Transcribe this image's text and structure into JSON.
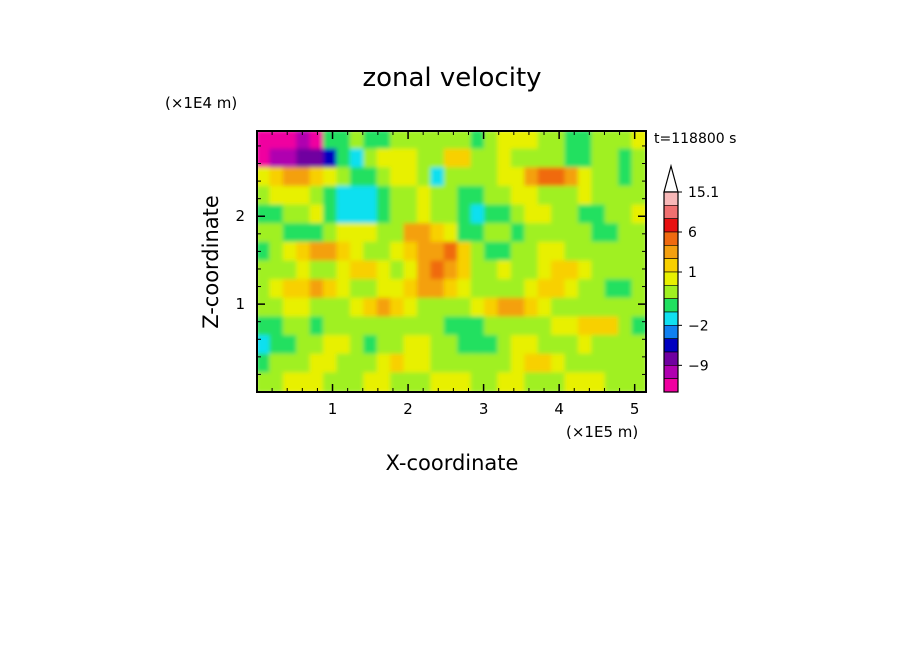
{
  "chart_data": {
    "type": "heatmap",
    "title": "zonal velocity",
    "xlabel": "X-coordinate",
    "ylabel": "Z-coordinate",
    "x_scale_label": "(×1E5 m)",
    "y_scale_label": "(×1E4 m)",
    "time_label": "t=118800 s",
    "xlim": [
      0,
      5.15
    ],
    "ylim": [
      0,
      2.97
    ],
    "x_ticks": [
      "1",
      "2",
      "3",
      "4",
      "5"
    ],
    "y_ticks": [
      "1",
      "2"
    ],
    "colorbar": {
      "labels": [
        "15.1",
        "6",
        "1",
        "−2",
        "−9"
      ],
      "levels_top_to_bottom": [
        "15.1",
        "",
        "",
        "6",
        "",
        "",
        "1",
        "",
        "",
        "",
        "−2",
        "",
        "",
        "−9",
        ""
      ],
      "colors_top_to_bottom": [
        "#f8b8b8",
        "#f07070",
        "#e81010",
        "#f06a10",
        "#f4a010",
        "#f8d000",
        "#e8f000",
        "#a0f020",
        "#20e060",
        "#10e0f0",
        "#1080f0",
        "#0000c0",
        "#7000a0",
        "#b000b0",
        "#f000a0"
      ],
      "extend_top": true
    },
    "field_sample_grid_note": "",
    "field_rows": [
      "AAABAGGHGGHHHHHHGHIIIHHGGHHHI",
      "ABBCCDGFHIIIHHJJHHIHHHHGGHHGH",
      "IJKKJIHGGHIIHFHHHHIIKLLKIHHGH",
      "HIIIHGFFFGHHIHHGGHHIIHHHIHHHH",
      "GGHHIGFFFGHHIHHGFGGHIIHHGGHHI",
      "HHGGGHIIIHHKKJIGGHHGHHHHHGGHH",
      "GHIJKKJIHHIJKKLJHGGHHIIHHHHHH",
      "HHHIHHIJJIHIKLKJHHIHHIJJIHHHH",
      "HIJJKJIHHIIJKKJIHHHHIJJIHHGGH",
      "HHIIHHHIJKJIHHHHIJKKJIHHHHHHH",
      "GGHHGHHHHHHHHHGGGHHHHHIIJJJHG",
      "FGGHHIIHGHHIIHHGGGHIIHHHIHHHH",
      "GHHHIIHHHIJIIHHHHHHIJJIHHHHHH",
      "HHIIIHHHIIHHHIIIHHIIHHHIIIHHH"
    ]
  }
}
